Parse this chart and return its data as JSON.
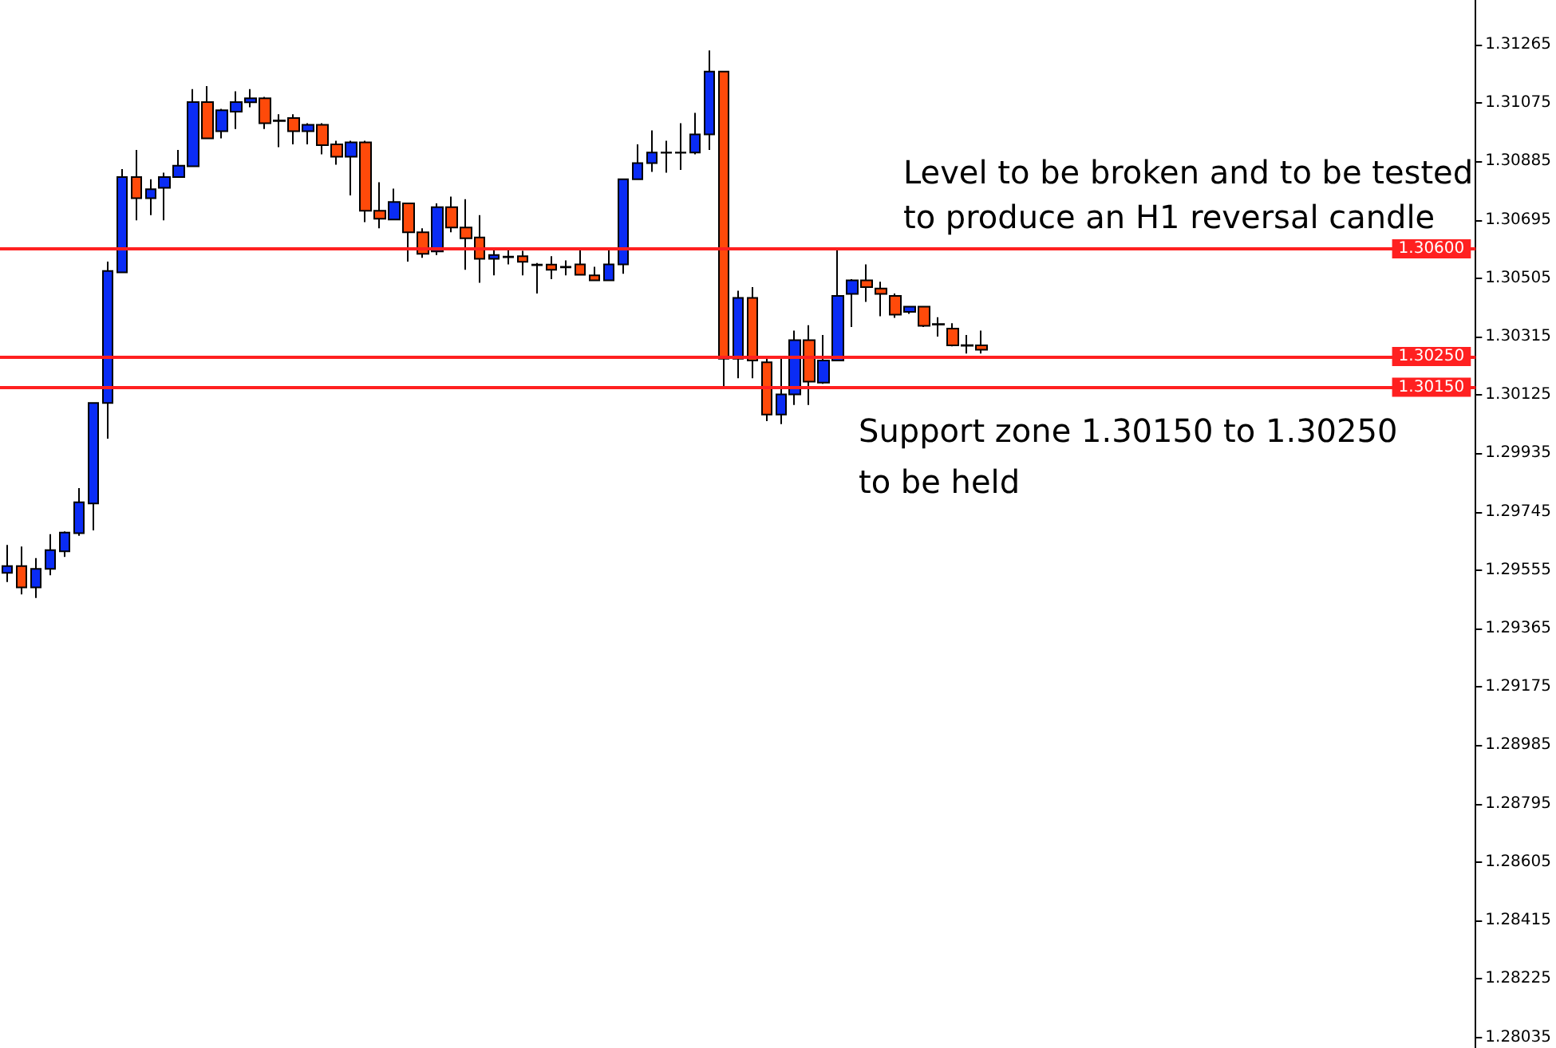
{
  "chart_data": {
    "type": "candlestick",
    "categories": [
      null,
      null,
      null,
      null,
      null,
      null,
      null,
      null,
      null,
      null,
      null,
      null,
      null,
      null,
      null,
      null,
      null,
      null,
      null,
      null,
      null,
      null,
      null,
      null,
      null,
      null,
      null,
      null,
      null,
      null,
      null,
      null,
      null,
      null,
      null,
      null,
      null,
      null,
      null,
      null,
      null,
      null,
      null,
      null,
      null,
      null,
      null,
      null,
      null,
      null,
      null,
      null,
      null,
      null,
      null,
      null,
      null,
      null,
      null,
      null,
      null,
      null,
      null,
      null,
      null,
      null,
      null,
      null,
      null,
      null,
      null,
      null,
      null,
      null,
      null,
      null,
      null,
      null,
      null,
      null,
      null,
      null,
      null,
      null,
      null,
      null,
      null,
      null,
      null,
      null,
      null,
      null,
      null,
      null,
      null,
      null,
      null,
      null,
      null,
      null,
      null,
      null,
      null
    ],
    "ohlc": [
      [
        1.29546,
        1.29637,
        1.29516,
        1.29568
      ],
      [
        1.29568,
        1.29632,
        1.29476,
        1.29499
      ],
      [
        1.29499,
        1.29594,
        1.29464,
        1.29559
      ],
      [
        1.29559,
        1.29672,
        1.29538,
        1.2962
      ],
      [
        1.29616,
        1.29681,
        1.29598,
        1.29677
      ],
      [
        1.29675,
        1.29822,
        1.29667,
        1.29776
      ],
      [
        1.29772,
        1.30099,
        1.29684,
        1.30099
      ],
      [
        1.30099,
        1.30559,
        1.29983,
        1.30528
      ],
      [
        1.30524,
        1.3086,
        1.30524,
        1.30834
      ],
      [
        1.30834,
        1.30922,
        1.30693,
        1.30765
      ],
      [
        1.30765,
        1.30827,
        1.3071,
        1.30794
      ],
      [
        1.30799,
        1.30848,
        1.30693,
        1.30834
      ],
      [
        1.30834,
        1.30922,
        1.30834,
        1.30871
      ],
      [
        1.30869,
        1.3112,
        1.30869,
        1.31078
      ],
      [
        1.31078,
        1.3113,
        1.3096,
        1.3096
      ],
      [
        1.30983,
        1.31056,
        1.3096,
        1.31051
      ],
      [
        1.31047,
        1.31113,
        1.3099,
        1.31078
      ],
      [
        1.31077,
        1.3112,
        1.31061,
        1.3109
      ],
      [
        1.3109,
        1.31095,
        1.3099,
        1.31009
      ],
      [
        1.31018,
        1.31038,
        1.30931,
        1.31016
      ],
      [
        1.31026,
        1.31038,
        1.3094,
        1.30983
      ],
      [
        1.30983,
        1.31009,
        1.3094,
        1.31004
      ],
      [
        1.31004,
        1.31009,
        1.30908,
        1.30938
      ],
      [
        1.3094,
        1.30952,
        1.30874,
        1.309
      ],
      [
        1.309,
        1.30952,
        1.30774,
        1.30947
      ],
      [
        1.30947,
        1.30952,
        1.30687,
        1.30724
      ],
      [
        1.30724,
        1.30817,
        1.30667,
        1.30698
      ],
      [
        1.30696,
        1.30796,
        1.30693,
        1.30753
      ],
      [
        1.30748,
        1.30748,
        1.30559,
        1.30654
      ],
      [
        1.30654,
        1.30667,
        1.30571,
        1.30584
      ],
      [
        1.30592,
        1.30748,
        1.3058,
        1.30736
      ],
      [
        1.30736,
        1.3077,
        1.30654,
        1.3067
      ],
      [
        1.3067,
        1.30762,
        1.30532,
        1.30635
      ],
      [
        1.30637,
        1.3071,
        1.3049,
        1.30568
      ],
      [
        1.30568,
        1.30602,
        1.30514,
        1.3058
      ],
      [
        1.30573,
        1.30602,
        1.3055,
        1.30575
      ],
      [
        1.30576,
        1.30594,
        1.30514,
        1.30558
      ],
      [
        1.30549,
        1.30554,
        1.30455,
        1.30547
      ],
      [
        1.30549,
        1.30576,
        1.30502,
        1.30532
      ],
      [
        1.30542,
        1.30563,
        1.30514,
        1.3054
      ],
      [
        1.3055,
        1.30602,
        1.30514,
        1.30516
      ],
      [
        1.30514,
        1.30542,
        1.30498,
        1.30498
      ],
      [
        1.30498,
        1.30602,
        1.30498,
        1.3055
      ],
      [
        1.3055,
        1.30827,
        1.30519,
        1.30827
      ],
      [
        1.30827,
        1.3094,
        1.30827,
        1.30879
      ],
      [
        1.30879,
        1.30986,
        1.30851,
        1.30914
      ],
      [
        1.30913,
        1.30952,
        1.30848,
        1.30914
      ],
      [
        1.30914,
        1.31009,
        1.30857,
        1.30913
      ],
      [
        1.30914,
        1.31043,
        1.30908,
        1.30973
      ],
      [
        1.30973,
        1.31246,
        1.30922,
        1.31177
      ],
      [
        1.31177,
        1.31177,
        1.30151,
        1.30243
      ],
      [
        1.30243,
        1.30464,
        1.30179,
        1.30441
      ],
      [
        1.30441,
        1.30476,
        1.30179,
        1.30237
      ],
      [
        1.30231,
        1.30248,
        1.3004,
        1.30061
      ],
      [
        1.30061,
        1.30248,
        1.3003,
        1.30127
      ],
      [
        1.30127,
        1.30334,
        1.30092,
        1.30303
      ],
      [
        1.30303,
        1.30352,
        1.30092,
        1.30168
      ],
      [
        1.30165,
        1.3032,
        1.30161,
        1.30237
      ],
      [
        1.30237,
        1.30602,
        1.30237,
        1.30447
      ],
      [
        1.30454,
        1.30502,
        1.30346,
        1.30498
      ],
      [
        1.30498,
        1.3055,
        1.30428,
        1.30476
      ],
      [
        1.30471,
        1.30493,
        1.30381,
        1.30454
      ],
      [
        1.30447,
        1.30455,
        1.30376,
        1.30386
      ],
      [
        1.30395,
        1.30415,
        1.30389,
        1.30412
      ],
      [
        1.30412,
        1.30415,
        1.30346,
        1.3035
      ],
      [
        1.30356,
        1.30378,
        1.30315,
        1.30354
      ],
      [
        1.30341,
        1.30358,
        1.30283,
        1.30286
      ],
      [
        1.30287,
        1.3032,
        1.3026,
        1.30285
      ],
      [
        1.30286,
        1.30334,
        1.3026,
        1.30272
      ],
      null,
      null,
      null,
      null,
      null,
      null,
      null,
      null,
      null,
      null,
      null,
      null,
      null,
      null,
      null,
      null,
      null,
      null,
      null,
      null,
      null,
      null,
      null,
      null,
      null,
      null,
      null,
      null,
      null,
      null,
      null,
      null,
      null,
      null
    ],
    "ylim": [
      1.28,
      1.3141
    ],
    "yticks": [
      1.28035,
      1.28225,
      1.28415,
      1.28605,
      1.28795,
      1.28985,
      1.29175,
      1.29365,
      1.29555,
      1.29745,
      1.29935,
      1.30125,
      1.30315,
      1.30505,
      1.30695,
      1.30885,
      1.31075,
      1.31265
    ],
    "grid": false,
    "tick_labels": "y",
    "ref_lines": [
      {
        "axis": "y",
        "value": 1.306,
        "label": "1.30600",
        "color": "#ff2020"
      },
      {
        "axis": "y",
        "value": 1.3025,
        "label": "1.30250",
        "color": "#ff2020"
      },
      {
        "axis": "y",
        "value": 1.3015,
        "label": "1.30150",
        "color": "#ff2020"
      }
    ],
    "annotations": [
      "Level to be broken and to be tested\nto produce an H1 reversal candle",
      "Support zone 1.30150 to 1.30250\nto be held"
    ]
  }
}
